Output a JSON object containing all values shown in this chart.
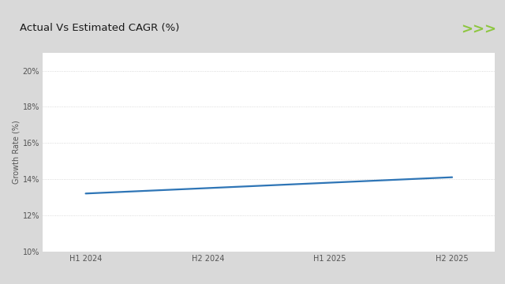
{
  "title": "Actual Vs Estimated CAGR (%)",
  "ylabel": "Growth Rate (%)",
  "x_labels": [
    "H1 2024",
    "H2 2024",
    "H1 2025",
    "H2 2025"
  ],
  "x_values": [
    0,
    1,
    2,
    3
  ],
  "y_values": [
    13.2,
    13.5,
    13.8,
    14.1
  ],
  "line_color": "#2e75b6",
  "line_width": 1.6,
  "ylim": [
    10,
    21
  ],
  "ytick_vals": [
    10,
    12,
    14,
    16,
    18,
    20
  ],
  "ytick_labels": [
    "10%",
    "12%",
    "14%",
    "16%",
    "18%",
    "20%"
  ],
  "outer_bg_color": "#d9d9d9",
  "inner_bg_color": "#f2f2f2",
  "plot_bg_color": "#ffffff",
  "title_bg_color": "#ffffff",
  "title_fontsize": 9.5,
  "axis_fontsize": 7,
  "ylabel_fontsize": 7,
  "green_color": "#8dc63f",
  "grid_color": "#d0d0d0",
  "grid_linestyle": "dotted",
  "tick_color": "#555555"
}
